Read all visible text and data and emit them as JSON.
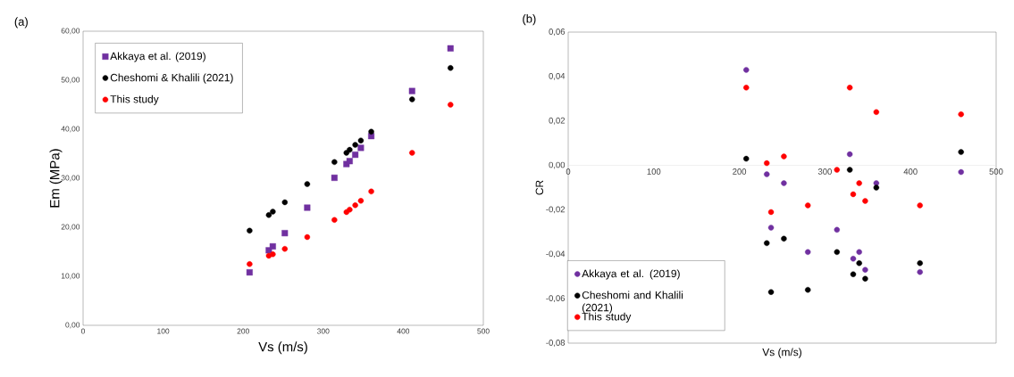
{
  "chart_data": [
    {
      "type": "scatter",
      "title": "(a)",
      "xlabel": "Vs (m/s)",
      "ylabel": "Em (MPa)",
      "x": [
        208,
        232,
        237,
        252,
        280,
        314,
        329,
        333,
        340,
        347,
        360,
        411,
        459
      ],
      "series": [
        {
          "name": "Akkaya et al. (2019)",
          "color": "#7030a0",
          "marker": "square",
          "values": [
            10.8,
            15.3,
            16.1,
            18.8,
            24.0,
            30.1,
            32.9,
            33.5,
            34.8,
            36.2,
            38.6,
            47.8,
            56.5
          ]
        },
        {
          "name": "Cheshomi & Khalili (2021)",
          "color": "#000000",
          "marker": "circle",
          "values": [
            19.3,
            22.5,
            23.2,
            25.1,
            28.8,
            33.3,
            35.2,
            35.8,
            36.8,
            37.7,
            39.5,
            46.1,
            52.5
          ]
        },
        {
          "name": "This study",
          "color": "#ff0000",
          "marker": "circle",
          "values": [
            12.5,
            14.2,
            14.5,
            15.6,
            18.0,
            21.5,
            23.1,
            23.6,
            24.5,
            25.4,
            27.3,
            35.2,
            45.0
          ]
        }
      ],
      "xlim": [
        0,
        500
      ],
      "xticks": [
        0,
        100,
        200,
        300,
        400,
        500
      ],
      "ylim": [
        0,
        60
      ],
      "yticks": [
        {
          "value": 0,
          "label": "0,00"
        },
        {
          "value": 10,
          "label": "10,00"
        },
        {
          "value": 20,
          "label": "20,00"
        },
        {
          "value": 30,
          "label": "30,00"
        },
        {
          "value": 40,
          "label": "40,00"
        },
        {
          "value": 50,
          "label": "50,00"
        },
        {
          "value": 60,
          "label": "60,00"
        }
      ],
      "legend": "top left",
      "grid": false
    },
    {
      "type": "scatter",
      "title": "(b)",
      "xlabel": "Vs (m/s)",
      "ylabel": "CR",
      "x": [
        208,
        232,
        237,
        252,
        280,
        314,
        329,
        333,
        340,
        347,
        360,
        411,
        459
      ],
      "series": [
        {
          "name": "Akkaya et al. (2019)",
          "color": "#7030a0",
          "marker": "circle",
          "values": [
            0.043,
            -0.004,
            -0.028,
            -0.008,
            -0.039,
            -0.029,
            0.005,
            -0.042,
            -0.039,
            -0.047,
            -0.008,
            -0.048,
            -0.003
          ]
        },
        {
          "name": "Cheshomi and Khalili (2021)",
          "color": "#000000",
          "marker": "circle",
          "values": [
            0.003,
            -0.035,
            -0.057,
            -0.033,
            -0.056,
            -0.039,
            -0.002,
            -0.049,
            -0.044,
            -0.051,
            -0.01,
            -0.044,
            0.006
          ]
        },
        {
          "name": "This study",
          "color": "#ff0000",
          "marker": "circle",
          "values": [
            0.035,
            0.001,
            -0.021,
            0.004,
            -0.018,
            -0.002,
            0.035,
            -0.013,
            -0.008,
            -0.016,
            0.024,
            -0.018,
            0.023
          ]
        }
      ],
      "xlim": [
        0,
        500
      ],
      "xticks": [
        0,
        100,
        200,
        300,
        400,
        500
      ],
      "ylim": [
        -0.08,
        0.06
      ],
      "yticks": [
        {
          "value": -0.08,
          "label": "-0,08"
        },
        {
          "value": -0.06,
          "label": "-0,06"
        },
        {
          "value": -0.04,
          "label": "-0,04"
        },
        {
          "value": -0.02,
          "label": "-0,02"
        },
        {
          "value": 0,
          "label": "0,00"
        },
        {
          "value": 0.02,
          "label": "0,02"
        },
        {
          "value": 0.04,
          "label": "0,04"
        },
        {
          "value": 0.06,
          "label": "0,06"
        }
      ],
      "legend": "bottom left",
      "grid": false
    }
  ]
}
